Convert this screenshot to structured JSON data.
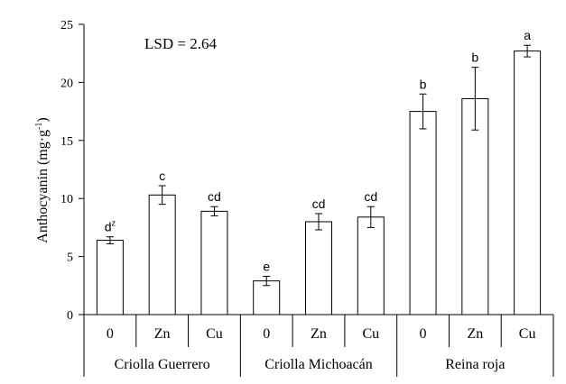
{
  "chart_data": {
    "type": "bar",
    "ylabel_main": "Anthocyanin (mg·g",
    "ylabel_sup": "-1",
    "ylabel_tail": ")",
    "annotation": "LSD = 2.64",
    "ylim": [
      0,
      25
    ],
    "yticks": [
      "0",
      "5",
      "10",
      "15",
      "20",
      "25"
    ],
    "grid": false,
    "groups": [
      {
        "label": "Criolla Guerrero",
        "bars": [
          {
            "category": "0",
            "value": 6.4,
            "error": 0.3,
            "letter": "d",
            "letter_sup": "z"
          },
          {
            "category": "Zn",
            "value": 10.3,
            "error": 0.8,
            "letter": "c",
            "letter_sup": ""
          },
          {
            "category": "Cu",
            "value": 8.9,
            "error": 0.4,
            "letter": "cd",
            "letter_sup": ""
          }
        ]
      },
      {
        "label": "Criolla Michoacán",
        "bars": [
          {
            "category": "0",
            "value": 2.9,
            "error": 0.4,
            "letter": "e",
            "letter_sup": ""
          },
          {
            "category": "Zn",
            "value": 8.0,
            "error": 0.7,
            "letter": "cd",
            "letter_sup": ""
          },
          {
            "category": "Cu",
            "value": 8.4,
            "error": 0.9,
            "letter": "cd",
            "letter_sup": ""
          }
        ]
      },
      {
        "label": "Reina roja",
        "bars": [
          {
            "category": "0",
            "value": 17.5,
            "error": 1.5,
            "letter": "b",
            "letter_sup": ""
          },
          {
            "category": "Zn",
            "value": 18.6,
            "error": 2.7,
            "letter": "b",
            "letter_sup": ""
          },
          {
            "category": "Cu",
            "value": 22.7,
            "error": 0.5,
            "letter": "a",
            "letter_sup": ""
          }
        ]
      }
    ]
  }
}
